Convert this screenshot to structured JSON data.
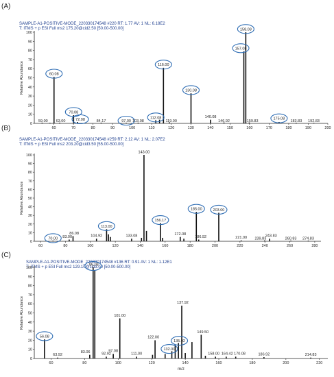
{
  "colors": {
    "peak": "#111111",
    "header": "#1f3f8f",
    "circle": "#2e6db4",
    "axis": "#222222",
    "label": "#222222"
  },
  "panels": [
    {
      "label": "(A)",
      "line1": "SAMPLE-A1-POSITIVE-MODE_220330174548 #220  RT: 1.77  AV: 1  NL: 6.18E2",
      "line2": "T: ITMS + p ESI Full ms2 175.20@cid2.50 [50.00-500.00]"
    },
    {
      "label": "(B)",
      "line1": "SAMPLE-A1-POSITIVE-MODE_220330174548 #259  RT: 2.12  AV: 1  NL: 2.07E2",
      "line2": "T: ITMS + p ESI Full ms2 203.20@cid3.50 [55.00-500.00]"
    },
    {
      "label": "(C)",
      "line1": "SAMPLE-A1-POSITIVE-MODE_220330174548 #136  RT: 0.91  AV: 1  NL: 1.12E1",
      "line2": "T: ITMS + p ESI Full ms2 129.10@cid3.00 [50.00-500.00]"
    }
  ],
  "chart_data": [
    {
      "type": "bar",
      "ylabel": "Relative Abundance",
      "xlabel": "",
      "xlim": [
        50,
        200
      ],
      "ylim": [
        0,
        100
      ],
      "xticks": [
        60,
        70,
        80,
        90,
        100,
        110,
        120,
        130,
        140,
        150,
        160,
        170,
        180,
        190,
        200
      ],
      "yticks": [
        0,
        10,
        20,
        30,
        40,
        50,
        60,
        70,
        80,
        90,
        100
      ],
      "peaks": [
        {
          "mz": 54,
          "v": 0.8
        },
        {
          "mz": 58,
          "v": 0.6
        },
        {
          "mz": 60.08,
          "v": 51,
          "label": "60.08",
          "circled": true
        },
        {
          "mz": 63.0,
          "v": 0.8
        },
        {
          "mz": 70.08,
          "v": 9,
          "label": "70.08",
          "circled": true
        },
        {
          "mz": 72.08,
          "v": 1.5,
          "label": "72.08",
          "circled": true
        },
        {
          "mz": 84.17,
          "v": 0.8
        },
        {
          "mz": 97.0,
          "v": 0.7,
          "label": "97.00",
          "circled": true
        },
        {
          "mz": 103.08,
          "v": 0.8
        },
        {
          "mz": 112.08,
          "v": 3.5,
          "label": "112.08",
          "circled": true
        },
        {
          "mz": 114,
          "v": 4
        },
        {
          "mz": 116.0,
          "v": 61,
          "label": "116.00",
          "circled": true
        },
        {
          "mz": 119.0,
          "v": 1.2
        },
        {
          "mz": 130.08,
          "v": 33,
          "label": "130.08",
          "circled": true
        },
        {
          "mz": 140.08,
          "v": 4
        },
        {
          "mz": 146.92,
          "v": 1
        },
        {
          "mz": 157.08,
          "v": 79,
          "label": "157.08",
          "circled": true
        },
        {
          "mz": 158.08,
          "v": 100,
          "label": "158.08",
          "circled": true
        },
        {
          "mz": 159.83,
          "v": 1
        },
        {
          "mz": 175.08,
          "v": 1.5,
          "label": "175.08",
          "circled": true
        },
        {
          "mz": 183.83,
          "v": 0.7
        },
        {
          "mz": 192.83,
          "v": 0.6
        }
      ],
      "labels": [
        {
          "t": "59.00",
          "mz": 54.5,
          "v": 1.5
        },
        {
          "t": "60.08",
          "mz": 60.08,
          "v": 53
        },
        {
          "t": "63.00",
          "mz": 63.5,
          "v": 1.5
        },
        {
          "t": "70.08",
          "mz": 70.08,
          "v": 11
        },
        {
          "t": "72.08",
          "mz": 73.5,
          "v": 3
        },
        {
          "t": "84.17",
          "mz": 84.17,
          "v": 1.5
        },
        {
          "t": "97.00",
          "mz": 97.0,
          "v": 1.5
        },
        {
          "t": "103.08",
          "mz": 103.08,
          "v": 1.5
        },
        {
          "t": "112.08",
          "mz": 112.08,
          "v": 5
        },
        {
          "t": "116.00",
          "mz": 116.0,
          "v": 63
        },
        {
          "t": "119.00",
          "mz": 120.0,
          "v": 1.5
        },
        {
          "t": "130.08",
          "mz": 130.08,
          "v": 35
        },
        {
          "t": "140.08",
          "mz": 140.08,
          "v": 6
        },
        {
          "t": "146.92",
          "mz": 146.92,
          "v": 1.5
        },
        {
          "t": "157.08",
          "mz": 155.5,
          "v": 81
        },
        {
          "t": "158.08",
          "mz": 158.08,
          "v": 102
        },
        {
          "t": "159.83",
          "mz": 161.5,
          "v": 1.5
        },
        {
          "t": "175.08",
          "mz": 175.08,
          "v": 4
        },
        {
          "t": "183.83",
          "mz": 183.83,
          "v": 1.5
        },
        {
          "t": "192.83",
          "mz": 192.83,
          "v": 1.5
        }
      ]
    },
    {
      "type": "bar",
      "ylabel": "Relative Abundance",
      "xlabel": "",
      "xlim": [
        55,
        285
      ],
      "ylim": [
        0,
        100
      ],
      "xticks": [
        60,
        80,
        100,
        120,
        140,
        160,
        180,
        200,
        220,
        240,
        260,
        280
      ],
      "yticks": [
        0,
        10,
        20,
        30,
        40,
        50,
        60,
        70,
        80,
        90,
        100
      ],
      "peaks": [
        {
          "mz": 70.0,
          "v": 0.8,
          "label": "70.00",
          "circled": true
        },
        {
          "mz": 83.0,
          "v": 2
        },
        {
          "mz": 86.08,
          "v": 6
        },
        {
          "mz": 104.92,
          "v": 3
        },
        {
          "mz": 113.0,
          "v": 14,
          "label": "113.00",
          "circled": true
        },
        {
          "mz": 114.5,
          "v": 8
        },
        {
          "mz": 116,
          "v": 5
        },
        {
          "mz": 133.08,
          "v": 3
        },
        {
          "mz": 141,
          "v": 4
        },
        {
          "mz": 143.0,
          "v": 100
        },
        {
          "mz": 145,
          "v": 12
        },
        {
          "mz": 156.17,
          "v": 21,
          "label": "156.17",
          "circled": true
        },
        {
          "mz": 158,
          "v": 4
        },
        {
          "mz": 172.08,
          "v": 5
        },
        {
          "mz": 175,
          "v": 3
        },
        {
          "mz": 185.0,
          "v": 34,
          "label": "185.00",
          "circled": true
        },
        {
          "mz": 186.92,
          "v": 2
        },
        {
          "mz": 203.0,
          "v": 33,
          "label": "203.00",
          "circled": true
        },
        {
          "mz": 221.0,
          "v": 1
        },
        {
          "mz": 239.83,
          "v": 1
        },
        {
          "mz": 243.83,
          "v": 3
        },
        {
          "mz": 260.83,
          "v": 0.8
        },
        {
          "mz": 274.83,
          "v": 0.8
        }
      ],
      "labels": [
        {
          "t": "70.00",
          "mz": 70.0,
          "v": 2
        },
        {
          "t": "83.00",
          "mz": 81.5,
          "v": 4
        },
        {
          "t": "86.08",
          "mz": 87.0,
          "v": 8
        },
        {
          "t": "104.92",
          "mz": 104.92,
          "v": 5
        },
        {
          "t": "113.00",
          "mz": 113.0,
          "v": 16
        },
        {
          "t": "133.08",
          "mz": 133.08,
          "v": 5
        },
        {
          "t": "143.00",
          "mz": 143.0,
          "v": 102
        },
        {
          "t": "156.17",
          "mz": 156.17,
          "v": 23
        },
        {
          "t": "172.08",
          "mz": 172.08,
          "v": 7
        },
        {
          "t": "185.00",
          "mz": 185.0,
          "v": 36
        },
        {
          "t": "186.92",
          "mz": 188.5,
          "v": 4
        },
        {
          "t": "203.00",
          "mz": 203.0,
          "v": 35
        },
        {
          "t": "221.00",
          "mz": 221.0,
          "v": 3
        },
        {
          "t": "239.83",
          "mz": 236.5,
          "v": 2
        },
        {
          "t": "243.83",
          "mz": 245.0,
          "v": 5
        },
        {
          "t": "260.83",
          "mz": 260.83,
          "v": 2
        },
        {
          "t": "274.83",
          "mz": 274.83,
          "v": 2
        }
      ]
    },
    {
      "type": "bar",
      "ylabel": "Relative Abundance",
      "xlabel": "m/z",
      "xlim": [
        50,
        225
      ],
      "ylim": [
        0,
        100
      ],
      "xticks": [
        60,
        80,
        100,
        120,
        140,
        160,
        180,
        200,
        220
      ],
      "yticks": [
        0,
        10,
        20,
        30,
        40,
        50,
        60,
        70,
        80,
        90,
        100
      ],
      "peaks": [
        {
          "mz": 56.08,
          "v": 21,
          "label": "56.08",
          "circled": true
        },
        {
          "mz": 63.92,
          "v": 1
        },
        {
          "mz": 83.06,
          "v": 4
        },
        {
          "mz": 85.08,
          "v": 100,
          "label": "85.08",
          "circled": true
        },
        {
          "mz": 86.08,
          "v": 97
        },
        {
          "mz": 92.92,
          "v": 2
        },
        {
          "mz": 97.08,
          "v": 5
        },
        {
          "mz": 101.0,
          "v": 44
        },
        {
          "mz": 111.0,
          "v": 2
        },
        {
          "mz": 120.5,
          "v": 4
        },
        {
          "mz": 122.0,
          "v": 20
        },
        {
          "mz": 128,
          "v": 5
        },
        {
          "mz": 132.0,
          "v": 8,
          "label": "132.00",
          "circled": true
        },
        {
          "mz": 134,
          "v": 15
        },
        {
          "mz": 135.92,
          "v": 17,
          "label": "135.92",
          "circled": true
        },
        {
          "mz": 137.92,
          "v": 58
        },
        {
          "mz": 140,
          "v": 6
        },
        {
          "mz": 144,
          "v": 18
        },
        {
          "mz": 149.5,
          "v": 26
        },
        {
          "mz": 152,
          "v": 3
        },
        {
          "mz": 158.0,
          "v": 2
        },
        {
          "mz": 164.42,
          "v": 2
        },
        {
          "mz": 170.08,
          "v": 2
        },
        {
          "mz": 186.92,
          "v": 1.5
        },
        {
          "mz": 214.83,
          "v": 1
        }
      ],
      "labels": [
        {
          "t": "56.08",
          "mz": 56.08,
          "v": 23
        },
        {
          "t": "63.92",
          "mz": 63.92,
          "v": 3
        },
        {
          "t": "83.06",
          "mz": 80.5,
          "v": 6
        },
        {
          "t": "86.08",
          "mz": 85.5,
          "v": 102
        },
        {
          "t": "92.92",
          "mz": 92.92,
          "v": 4
        },
        {
          "t": "97.08",
          "mz": 97.08,
          "v": 7
        },
        {
          "t": "101.00",
          "mz": 101.0,
          "v": 46
        },
        {
          "t": "111.00",
          "mz": 111.0,
          "v": 4
        },
        {
          "t": "122.00",
          "mz": 121.0,
          "v": 22
        },
        {
          "t": "132.00",
          "mz": 130.5,
          "v": 9
        },
        {
          "t": "135.92",
          "mz": 136.5,
          "v": 18
        },
        {
          "t": "137.92",
          "mz": 138.5,
          "v": 60
        },
        {
          "t": "149.50",
          "mz": 150.5,
          "v": 28
        },
        {
          "t": "158.00",
          "mz": 157.0,
          "v": 4
        },
        {
          "t": "164.42",
          "mz": 165.0,
          "v": 4
        },
        {
          "t": "170.08",
          "mz": 172.5,
          "v": 4
        },
        {
          "t": "186.92",
          "mz": 186.92,
          "v": 3.5
        },
        {
          "t": "214.83",
          "mz": 214.83,
          "v": 3
        }
      ]
    }
  ]
}
